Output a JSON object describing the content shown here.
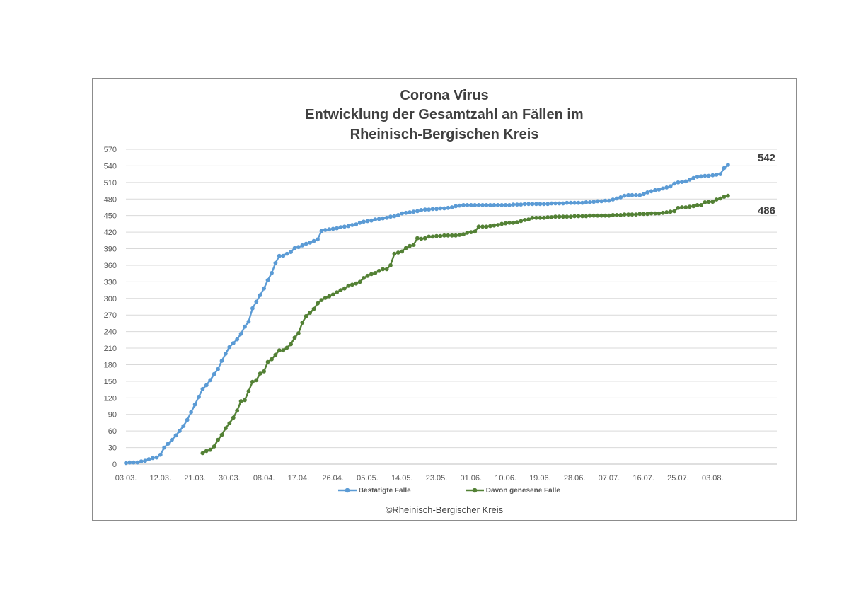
{
  "chart_data": {
    "type": "line",
    "title": [
      "Corona Virus",
      "Entwicklung der Gesamtzahl an Fällen im",
      "Rheinisch-Bergischen Kreis"
    ],
    "xlabel": "",
    "ylabel": "",
    "start_date": "03.03.",
    "x_ticks": [
      "03.03.",
      "12.03.",
      "21.03.",
      "30.03.",
      "08.04.",
      "17.04.",
      "26.04.",
      "05.05.",
      "14.05.",
      "23.05.",
      "01.06.",
      "10.06.",
      "19.06.",
      "28.06.",
      "07.07.",
      "16.07.",
      "25.07.",
      "03.08."
    ],
    "y_ticks": [
      0,
      30,
      60,
      90,
      120,
      150,
      180,
      210,
      240,
      270,
      300,
      330,
      360,
      390,
      420,
      450,
      480,
      510,
      540,
      570
    ],
    "ylim": [
      0,
      570
    ],
    "grid": true,
    "legend_position": "bottom",
    "source": "©Rheinisch-Bergischer Kreis",
    "series": [
      {
        "name": "Bestätigte Fälle",
        "color": "#5b9bd5",
        "end_label": "542",
        "points": [
          [
            "03.03.",
            2
          ],
          [
            "04.03.",
            3
          ],
          [
            "05.03.",
            3
          ],
          [
            "06.03.",
            3
          ],
          [
            "07.03.",
            5
          ],
          [
            "08.03.",
            6
          ],
          [
            "09.03.",
            9
          ],
          [
            "10.03.",
            11
          ],
          [
            "11.03.",
            12
          ],
          [
            "12.03.",
            17
          ],
          [
            "13.03.",
            30
          ],
          [
            "14.03.",
            37
          ],
          [
            "15.03.",
            44
          ],
          [
            "16.03.",
            52
          ],
          [
            "17.03.",
            60
          ],
          [
            "18.03.",
            69
          ],
          [
            "19.03.",
            80
          ],
          [
            "20.03.",
            94
          ],
          [
            "21.03.",
            108
          ],
          [
            "22.03.",
            122
          ],
          [
            "23.03.",
            136
          ],
          [
            "24.03.",
            143
          ],
          [
            "25.03.",
            152
          ],
          [
            "26.03.",
            163
          ],
          [
            "27.03.",
            172
          ],
          [
            "28.03.",
            187
          ],
          [
            "29.03.",
            200
          ],
          [
            "30.03.",
            212
          ],
          [
            "31.03.",
            219
          ],
          [
            "01.04.",
            226
          ],
          [
            "02.04.",
            236
          ],
          [
            "03.04.",
            249
          ],
          [
            "04.04.",
            258
          ],
          [
            "05.04.",
            282
          ],
          [
            "06.04.",
            294
          ],
          [
            "07.04.",
            306
          ],
          [
            "08.04.",
            318
          ],
          [
            "09.04.",
            333
          ],
          [
            "10.04.",
            346
          ],
          [
            "11.04.",
            364
          ],
          [
            "12.04.",
            377
          ],
          [
            "13.04.",
            377
          ],
          [
            "14.04.",
            381
          ],
          [
            "15.04.",
            384
          ],
          [
            "16.04.",
            391
          ],
          [
            "17.04.",
            393
          ],
          [
            "18.04.",
            396
          ],
          [
            "19.04.",
            399
          ],
          [
            "20.04.",
            401
          ],
          [
            "21.04.",
            404
          ],
          [
            "22.04.",
            407
          ],
          [
            "23.04.",
            422
          ],
          [
            "24.04.",
            424
          ],
          [
            "25.04.",
            425
          ],
          [
            "26.04.",
            426
          ],
          [
            "27.04.",
            427
          ],
          [
            "28.04.",
            429
          ],
          [
            "29.04.",
            430
          ],
          [
            "30.04.",
            431
          ],
          [
            "01.05.",
            433
          ],
          [
            "02.05.",
            434
          ],
          [
            "03.05.",
            437
          ],
          [
            "04.05.",
            439
          ],
          [
            "05.05.",
            440
          ],
          [
            "06.05.",
            441
          ],
          [
            "07.05.",
            443
          ],
          [
            "08.05.",
            444
          ],
          [
            "09.05.",
            445
          ],
          [
            "10.05.",
            446
          ],
          [
            "11.05.",
            448
          ],
          [
            "12.05.",
            449
          ],
          [
            "13.05.",
            451
          ],
          [
            "14.05.",
            454
          ],
          [
            "15.05.",
            455
          ],
          [
            "16.05.",
            456
          ],
          [
            "17.05.",
            457
          ],
          [
            "18.05.",
            458
          ],
          [
            "19.05.",
            460
          ],
          [
            "20.05.",
            461
          ],
          [
            "21.05.",
            461
          ],
          [
            "22.05.",
            462
          ],
          [
            "23.05.",
            462
          ],
          [
            "24.05.",
            463
          ],
          [
            "25.05.",
            463
          ],
          [
            "26.05.",
            464
          ],
          [
            "27.05.",
            465
          ],
          [
            "28.05.",
            467
          ],
          [
            "29.05.",
            468
          ],
          [
            "30.05.",
            469
          ],
          [
            "31.05.",
            469
          ],
          [
            "01.06.",
            469
          ],
          [
            "02.06.",
            469
          ],
          [
            "03.06.",
            469
          ],
          [
            "04.06.",
            469
          ],
          [
            "05.06.",
            469
          ],
          [
            "06.06.",
            469
          ],
          [
            "07.06.",
            469
          ],
          [
            "08.06.",
            469
          ],
          [
            "09.06.",
            469
          ],
          [
            "10.06.",
            469
          ],
          [
            "11.06.",
            469
          ],
          [
            "12.06.",
            470
          ],
          [
            "13.06.",
            470
          ],
          [
            "14.06.",
            470
          ],
          [
            "15.06.",
            471
          ],
          [
            "16.06.",
            471
          ],
          [
            "17.06.",
            471
          ],
          [
            "18.06.",
            471
          ],
          [
            "19.06.",
            471
          ],
          [
            "20.06.",
            471
          ],
          [
            "21.06.",
            471
          ],
          [
            "22.06.",
            472
          ],
          [
            "23.06.",
            472
          ],
          [
            "24.06.",
            472
          ],
          [
            "25.06.",
            472
          ],
          [
            "26.06.",
            473
          ],
          [
            "27.06.",
            473
          ],
          [
            "28.06.",
            473
          ],
          [
            "29.06.",
            473
          ],
          [
            "30.06.",
            473
          ],
          [
            "01.07.",
            474
          ],
          [
            "02.07.",
            474
          ],
          [
            "03.07.",
            475
          ],
          [
            "04.07.",
            476
          ],
          [
            "05.07.",
            476
          ],
          [
            "06.07.",
            477
          ],
          [
            "07.07.",
            477
          ],
          [
            "08.07.",
            479
          ],
          [
            "09.07.",
            481
          ],
          [
            "10.07.",
            483
          ],
          [
            "11.07.",
            486
          ],
          [
            "12.07.",
            487
          ],
          [
            "13.07.",
            487
          ],
          [
            "14.07.",
            487
          ],
          [
            "15.07.",
            487
          ],
          [
            "16.07.",
            489
          ],
          [
            "17.07.",
            492
          ],
          [
            "18.07.",
            494
          ],
          [
            "19.07.",
            496
          ],
          [
            "20.07.",
            497
          ],
          [
            "21.07.",
            499
          ],
          [
            "22.07.",
            501
          ],
          [
            "23.07.",
            503
          ],
          [
            "24.07.",
            508
          ],
          [
            "25.07.",
            510
          ],
          [
            "26.07.",
            511
          ],
          [
            "27.07.",
            512
          ],
          [
            "28.07.",
            515
          ],
          [
            "29.07.",
            518
          ],
          [
            "30.07.",
            520
          ],
          [
            "31.07.",
            521
          ],
          [
            "01.08.",
            522
          ],
          [
            "02.08.",
            522
          ],
          [
            "03.08.",
            523
          ],
          [
            "04.08.",
            524
          ],
          [
            "05.08.",
            525
          ],
          [
            "06.08.",
            536
          ],
          [
            "07.08.",
            542
          ]
        ]
      },
      {
        "name": "Davon genesene Fälle",
        "color": "#538135",
        "end_label": "486",
        "points": [
          [
            "23.03.",
            20
          ],
          [
            "24.03.",
            24
          ],
          [
            "25.03.",
            26
          ],
          [
            "26.03.",
            32
          ],
          [
            "27.03.",
            44
          ],
          [
            "28.03.",
            53
          ],
          [
            "29.03.",
            65
          ],
          [
            "30.03.",
            74
          ],
          [
            "31.03.",
            84
          ],
          [
            "01.04.",
            97
          ],
          [
            "02.04.",
            114
          ],
          [
            "03.04.",
            116
          ],
          [
            "04.04.",
            132
          ],
          [
            "05.04.",
            149
          ],
          [
            "06.04.",
            152
          ],
          [
            "07.04.",
            164
          ],
          [
            "08.04.",
            168
          ],
          [
            "09.04.",
            185
          ],
          [
            "10.04.",
            190
          ],
          [
            "11.04.",
            198
          ],
          [
            "12.04.",
            206
          ],
          [
            "13.04.",
            206
          ],
          [
            "14.04.",
            211
          ],
          [
            "15.04.",
            217
          ],
          [
            "16.04.",
            229
          ],
          [
            "17.04.",
            237
          ],
          [
            "18.04.",
            256
          ],
          [
            "19.04.",
            268
          ],
          [
            "20.04.",
            274
          ],
          [
            "21.04.",
            281
          ],
          [
            "22.04.",
            291
          ],
          [
            "23.04.",
            297
          ],
          [
            "24.04.",
            301
          ],
          [
            "25.04.",
            304
          ],
          [
            "26.04.",
            307
          ],
          [
            "27.04.",
            311
          ],
          [
            "28.04.",
            315
          ],
          [
            "29.04.",
            318
          ],
          [
            "30.04.",
            323
          ],
          [
            "01.05.",
            325
          ],
          [
            "02.05.",
            327
          ],
          [
            "03.05.",
            330
          ],
          [
            "04.05.",
            337
          ],
          [
            "05.05.",
            341
          ],
          [
            "06.05.",
            344
          ],
          [
            "07.05.",
            346
          ],
          [
            "08.05.",
            350
          ],
          [
            "09.05.",
            353
          ],
          [
            "10.05.",
            353
          ],
          [
            "11.05.",
            360
          ],
          [
            "12.05.",
            381
          ],
          [
            "13.05.",
            383
          ],
          [
            "14.05.",
            385
          ],
          [
            "15.05.",
            391
          ],
          [
            "16.05.",
            395
          ],
          [
            "17.05.",
            397
          ],
          [
            "18.05.",
            409
          ],
          [
            "19.05.",
            408
          ],
          [
            "20.05.",
            409
          ],
          [
            "21.05.",
            412
          ],
          [
            "22.05.",
            412
          ],
          [
            "23.05.",
            413
          ],
          [
            "24.05.",
            413
          ],
          [
            "25.05.",
            414
          ],
          [
            "26.05.",
            414
          ],
          [
            "27.05.",
            414
          ],
          [
            "28.05.",
            414
          ],
          [
            "29.05.",
            415
          ],
          [
            "30.05.",
            416
          ],
          [
            "31.05.",
            419
          ],
          [
            "01.06.",
            420
          ],
          [
            "02.06.",
            421
          ],
          [
            "03.06.",
            430
          ],
          [
            "04.06.",
            430
          ],
          [
            "05.06.",
            430
          ],
          [
            "06.06.",
            431
          ],
          [
            "07.06.",
            432
          ],
          [
            "08.06.",
            433
          ],
          [
            "09.06.",
            435
          ],
          [
            "10.06.",
            436
          ],
          [
            "11.06.",
            437
          ],
          [
            "12.06.",
            437
          ],
          [
            "13.06.",
            438
          ],
          [
            "14.06.",
            440
          ],
          [
            "15.06.",
            442
          ],
          [
            "16.06.",
            443
          ],
          [
            "17.06.",
            446
          ],
          [
            "18.06.",
            446
          ],
          [
            "19.06.",
            446
          ],
          [
            "20.06.",
            446
          ],
          [
            "21.06.",
            447
          ],
          [
            "22.06.",
            447
          ],
          [
            "23.06.",
            448
          ],
          [
            "24.06.",
            448
          ],
          [
            "25.06.",
            448
          ],
          [
            "26.06.",
            448
          ],
          [
            "27.06.",
            448
          ],
          [
            "28.06.",
            449
          ],
          [
            "29.06.",
            449
          ],
          [
            "30.06.",
            449
          ],
          [
            "01.07.",
            449
          ],
          [
            "02.07.",
            450
          ],
          [
            "03.07.",
            450
          ],
          [
            "04.07.",
            450
          ],
          [
            "05.07.",
            450
          ],
          [
            "06.07.",
            450
          ],
          [
            "07.07.",
            450
          ],
          [
            "08.07.",
            451
          ],
          [
            "09.07.",
            451
          ],
          [
            "10.07.",
            451
          ],
          [
            "11.07.",
            452
          ],
          [
            "12.07.",
            452
          ],
          [
            "13.07.",
            452
          ],
          [
            "14.07.",
            452
          ],
          [
            "15.07.",
            453
          ],
          [
            "16.07.",
            453
          ],
          [
            "17.07.",
            453
          ],
          [
            "18.07.",
            454
          ],
          [
            "19.07.",
            454
          ],
          [
            "20.07.",
            454
          ],
          [
            "21.07.",
            455
          ],
          [
            "22.07.",
            456
          ],
          [
            "23.07.",
            457
          ],
          [
            "24.07.",
            458
          ],
          [
            "25.07.",
            464
          ],
          [
            "26.07.",
            465
          ],
          [
            "27.07.",
            465
          ],
          [
            "28.07.",
            466
          ],
          [
            "29.07.",
            467
          ],
          [
            "30.07.",
            469
          ],
          [
            "31.07.",
            469
          ],
          [
            "01.08.",
            474
          ],
          [
            "02.08.",
            475
          ],
          [
            "03.08.",
            475
          ],
          [
            "04.08.",
            479
          ],
          [
            "05.08.",
            481
          ],
          [
            "06.08.",
            484
          ],
          [
            "07.08.",
            486
          ]
        ]
      }
    ]
  }
}
